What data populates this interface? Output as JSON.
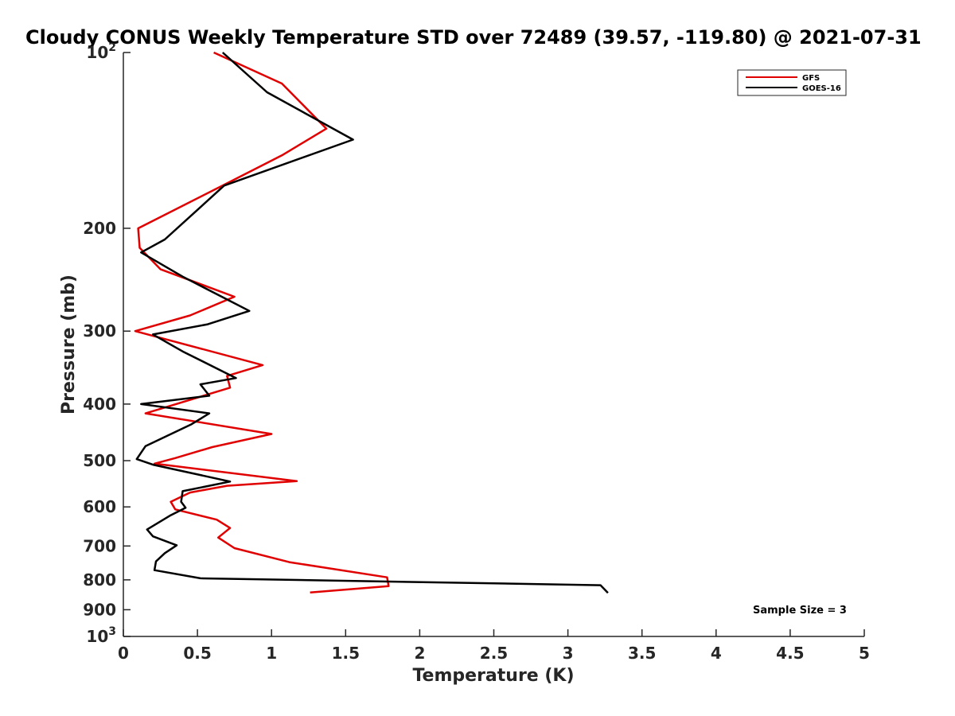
{
  "chart_data": {
    "type": "line",
    "title": "Cloudy CONUS Weekly Temperature STD over 72489 (39.57, -119.80) @ 2021-07-31",
    "xlabel": "Temperature (K)",
    "ylabel": "Pressure (mb)",
    "xlim": [
      0,
      5
    ],
    "ylim": [
      100,
      1000
    ],
    "y_scale": "log",
    "y_reversed": true,
    "x_ticks": [
      "0",
      "0.5",
      "1",
      "1.5",
      "2",
      "2.5",
      "3",
      "3.5",
      "4",
      "4.5",
      "5"
    ],
    "x_tick_values": [
      0,
      0.5,
      1,
      1.5,
      2,
      2.5,
      3,
      3.5,
      4,
      4.5,
      5
    ],
    "y_ticks": [
      {
        "value": 100,
        "base": "10",
        "exp": "2"
      },
      {
        "value": 200,
        "label": "200"
      },
      {
        "value": 300,
        "label": "300"
      },
      {
        "value": 400,
        "label": "400"
      },
      {
        "value": 500,
        "label": "500"
      },
      {
        "value": 600,
        "label": "600"
      },
      {
        "value": 700,
        "label": "700"
      },
      {
        "value": 800,
        "label": "800"
      },
      {
        "value": 900,
        "label": "900"
      },
      {
        "value": 1000,
        "base": "10",
        "exp": "3"
      }
    ],
    "grid": false,
    "legend_position": "top-right",
    "annotation": "Sample Size = 3",
    "series": [
      {
        "name": "GFS",
        "color": "#e00000",
        "points": [
          [
            0.61,
            100
          ],
          [
            1.07,
            113
          ],
          [
            1.37,
            135
          ],
          [
            1.07,
            150
          ],
          [
            0.65,
            170
          ],
          [
            0.1,
            200
          ],
          [
            0.11,
            216
          ],
          [
            0.25,
            235
          ],
          [
            0.75,
            262
          ],
          [
            0.45,
            282
          ],
          [
            0.08,
            300
          ],
          [
            0.94,
            343
          ],
          [
            0.7,
            358
          ],
          [
            0.72,
            375
          ],
          [
            0.15,
            415
          ],
          [
            1.0,
            450
          ],
          [
            0.6,
            474
          ],
          [
            0.35,
            495
          ],
          [
            0.21,
            506
          ],
          [
            1.17,
            542
          ],
          [
            0.7,
            552
          ],
          [
            0.45,
            567
          ],
          [
            0.32,
            588
          ],
          [
            0.35,
            606
          ],
          [
            0.63,
            631
          ],
          [
            0.72,
            652
          ],
          [
            0.64,
            677
          ],
          [
            0.75,
            706
          ],
          [
            1.12,
            746
          ],
          [
            1.78,
            792
          ],
          [
            1.79,
            820
          ],
          [
            1.26,
            841
          ]
        ]
      },
      {
        "name": "GOES-16",
        "color": "#000000",
        "points": [
          [
            0.67,
            100
          ],
          [
            0.97,
            117
          ],
          [
            1.55,
            141
          ],
          [
            0.68,
            169
          ],
          [
            0.5,
            186
          ],
          [
            0.28,
            209
          ],
          [
            0.12,
            220
          ],
          [
            0.4,
            242
          ],
          [
            0.85,
            277
          ],
          [
            0.57,
            292
          ],
          [
            0.2,
            304
          ],
          [
            0.4,
            325
          ],
          [
            0.76,
            361
          ],
          [
            0.52,
            370
          ],
          [
            0.58,
            387
          ],
          [
            0.12,
            400
          ],
          [
            0.58,
            415
          ],
          [
            0.46,
            433
          ],
          [
            0.15,
            472
          ],
          [
            0.09,
            497
          ],
          [
            0.2,
            508
          ],
          [
            0.72,
            543
          ],
          [
            0.4,
            564
          ],
          [
            0.39,
            588
          ],
          [
            0.42,
            602
          ],
          [
            0.32,
            620
          ],
          [
            0.16,
            656
          ],
          [
            0.2,
            674
          ],
          [
            0.36,
            698
          ],
          [
            0.28,
            720
          ],
          [
            0.22,
            744
          ],
          [
            0.21,
            770
          ],
          [
            0.52,
            795
          ],
          [
            3.22,
            817
          ],
          [
            3.27,
            842
          ]
        ]
      }
    ]
  }
}
